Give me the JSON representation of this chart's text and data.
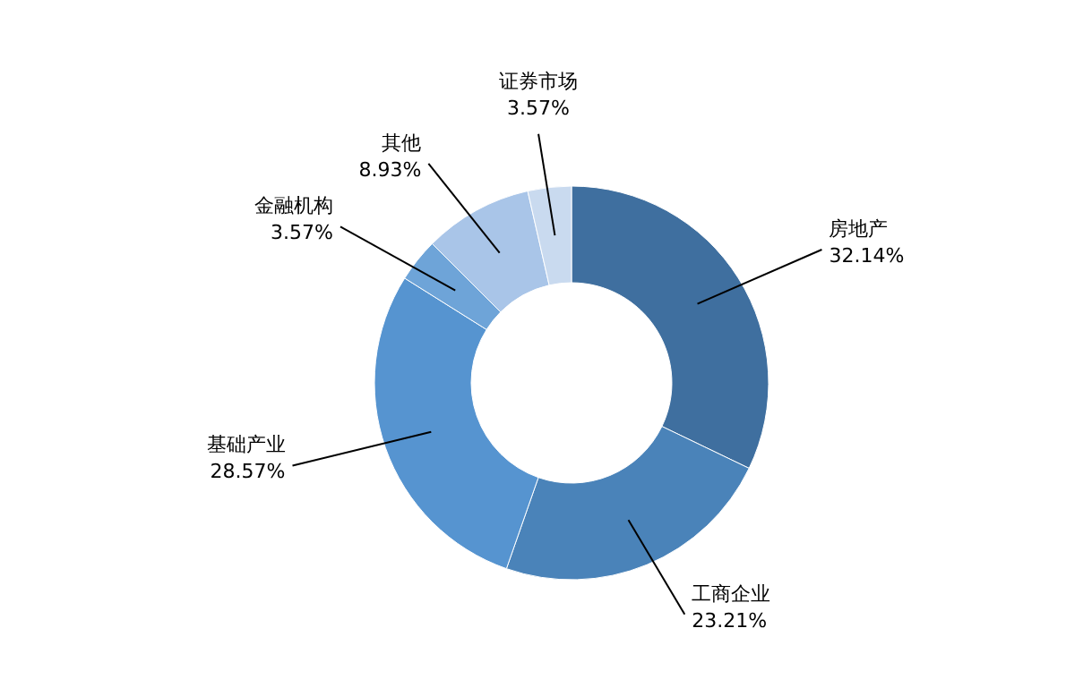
{
  "chart_data": {
    "type": "donut",
    "categories": [
      "房地产",
      "工商企业",
      "基础产业",
      "金融机构",
      "其他",
      "证券市场"
    ],
    "values": [
      32.14,
      23.21,
      28.57,
      3.57,
      8.93,
      3.57
    ],
    "value_labels": [
      "32.14%",
      "23.21%",
      "28.57%",
      "3.57%",
      "8.93%",
      "3.57%"
    ],
    "colors": [
      "#3f6f9f",
      "#4a83b9",
      "#5694d0",
      "#6ea4d8",
      "#a9c5e8",
      "#c9daef"
    ],
    "legend": false
  }
}
